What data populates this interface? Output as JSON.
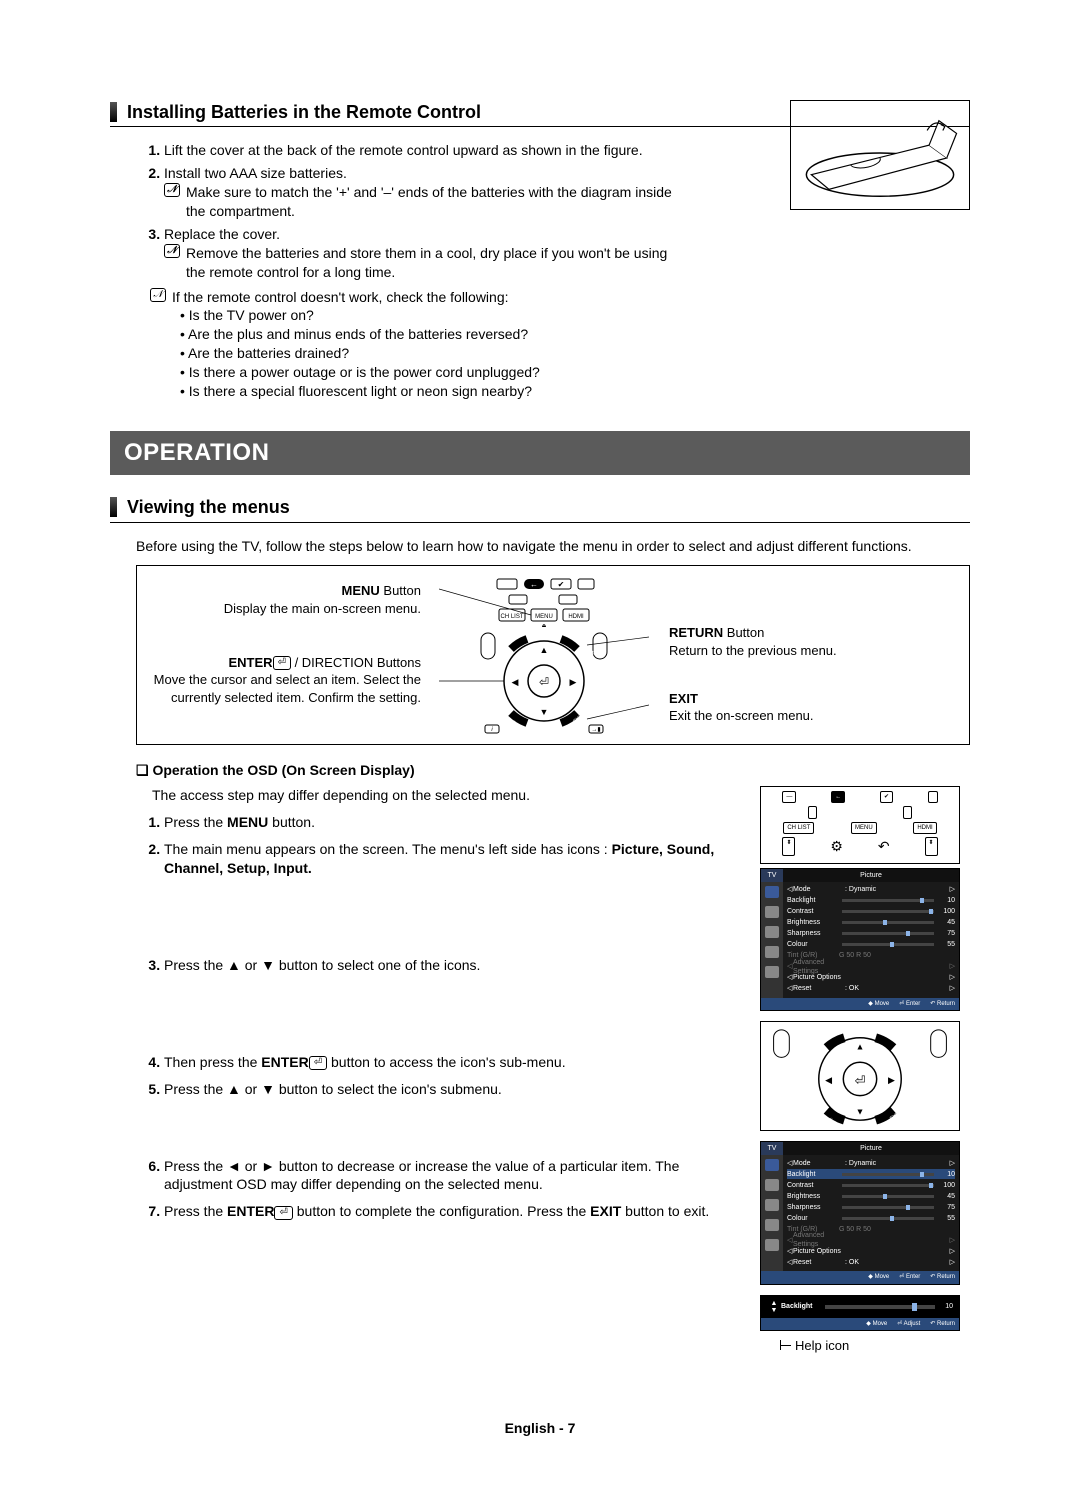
{
  "section1": {
    "title": "Installing Batteries in the Remote Control",
    "steps": [
      "Lift the cover at the back of the remote control upward as shown in the figure.",
      "Install two AAA size batteries.",
      "Replace the cover."
    ],
    "step2_note": "Make sure to match the '+' and '–' ends of the batteries with the diagram inside the compartment.",
    "step3_note": "Remove the batteries and store them in a cool, dry place if you won't be using the remote control for a long time.",
    "check_intro": "If the remote control doesn't work, check the following:",
    "checks": [
      "Is the TV power on?",
      "Are the plus and minus ends of the batteries reversed?",
      "Are the batteries drained?",
      "Is there a power outage or is the power cord unplugged?",
      "Is there a special fluorescent light or neon sign nearby?"
    ]
  },
  "operation_bar": "OPERATION",
  "section2": {
    "title": "Viewing the menus",
    "intro": "Before using the TV, follow the steps below to learn how to navigate the menu in order to select and adjust different functions.",
    "menu_btn_label": "MENU",
    "menu_btn_after": " Button",
    "menu_btn_desc": "Display the main on-screen menu.",
    "enter_label": "ENTER",
    "enter_after": " / DIRECTION Buttons",
    "enter_desc": "Move the cursor and select an item. Select the currently selected item. Confirm the setting.",
    "return_label": "RETURN",
    "return_after": " Button",
    "return_desc": "Return to the previous menu.",
    "exit_label": "EXIT",
    "exit_desc": "Exit the on-screen menu."
  },
  "osd": {
    "heading": "Operation the OSD (On Screen Display)",
    "intro": "The access step may differ depending on the selected menu.",
    "step1_a": "Press the ",
    "step1_b": "MENU",
    "step1_c": " button.",
    "step2_a": "The main menu appears on the screen. The menu's left side has icons : ",
    "step2_b": "Picture, Sound, Channel, Setup, Input.",
    "step3": "Press the ▲ or ▼ button to select one of the icons.",
    "step4_a": "Then press the ",
    "step4_b": "ENTER",
    "step4_c": " button to access the icon's sub-menu.",
    "step5": "Press the ▲ or ▼ button to select the icon's submenu.",
    "step6": "Press the ◄ or ► button to decrease or increase the value of a particular item. The adjustment OSD may differ depending on the selected menu.",
    "step7_a": "Press the ",
    "step7_b": "ENTER",
    "step7_c": " button to complete the configuration. Press the ",
    "step7_d": "EXIT",
    "step7_e": " button to exit."
  },
  "tv_menu": {
    "tab_left": "TV",
    "tab_right": "Picture",
    "rows": [
      {
        "label": "Mode",
        "value": ": Dynamic",
        "slider": null,
        "pos": null,
        "nav": true
      },
      {
        "label": "Backlight",
        "value": "10",
        "slider": true,
        "pos": 85,
        "highlight": true
      },
      {
        "label": "Contrast",
        "value": "100",
        "slider": true,
        "pos": 95
      },
      {
        "label": "Brightness",
        "value": "45",
        "slider": true,
        "pos": 45
      },
      {
        "label": "Sharpness",
        "value": "75",
        "slider": true,
        "pos": 70
      },
      {
        "label": "Colour",
        "value": "55",
        "slider": true,
        "pos": 52
      },
      {
        "label": "Tint (G/R)",
        "value": "G 50      R 50",
        "slider": null,
        "dim": true
      },
      {
        "label": "Advanced Settings",
        "value": "",
        "slider": null,
        "dim": true,
        "nav": true
      },
      {
        "label": "Picture Options",
        "value": "",
        "slider": null,
        "nav": true
      },
      {
        "label": "Reset",
        "value": ": OK",
        "slider": null,
        "nav": true
      }
    ],
    "footer": [
      "◆ Move",
      "⏎ Enter",
      "↶ Return"
    ]
  },
  "backlight": {
    "label": "Backlight",
    "value": "10",
    "footer": [
      "◆ Move",
      "⏎ Adjust",
      "↶ Return"
    ]
  },
  "help_icon_label": "Help icon",
  "remote_buttons": {
    "chlist": "CH LIST",
    "menu": "MENU",
    "hdmi": "HDMI",
    "tools": "TOOLS",
    "return": "RETURN",
    "info": "INFO",
    "exit": "EXIT"
  },
  "footer": {
    "lang": "English - ",
    "page": "7"
  },
  "colors": {
    "bar": "#5b5b5b",
    "menu_bg": "#000000",
    "menu_header_l": "#2a3a5a",
    "menu_footer": "#2a4a7a",
    "knob": "#8cb4e8"
  }
}
